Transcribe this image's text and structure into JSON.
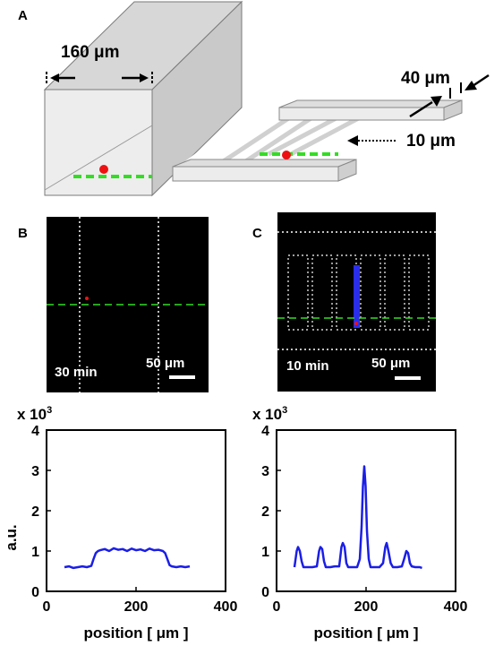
{
  "panels": [
    {
      "id": "A",
      "label": "A"
    },
    {
      "id": "B",
      "label": "B"
    },
    {
      "id": "C",
      "label": "C"
    }
  ],
  "schematic": {
    "width_label": "160 μm",
    "channel_label": "40 μm",
    "gap_label": "10 μm"
  },
  "micrographs": [
    {
      "panel": "B",
      "time_label": "30 min",
      "scale_label": "50 μm"
    },
    {
      "panel": "C",
      "time_label": "10 min",
      "scale_label": "50 μm"
    }
  ],
  "plots": {
    "ylabel": "a.u.",
    "xlabel": "position [ μm ]",
    "y_multiplier": "x 10",
    "y_exponent": "3"
  },
  "colors": {
    "trace": "#1a1ee6",
    "guide": "#33dd22",
    "particle": "#ee1111",
    "box_face": "#e8e8e8",
    "box_top": "#d6d6d6"
  },
  "chart_data": [
    {
      "type": "line",
      "panel": "B",
      "xlabel": "position [ μm ]",
      "ylabel": "a.u.",
      "y_scale_note": "x 10^3",
      "xlim": [
        0,
        400
      ],
      "ylim": [
        0,
        4
      ],
      "xticks": [
        0,
        200,
        400
      ],
      "yticks": [
        0,
        1,
        2,
        3,
        4
      ],
      "series": [
        {
          "x": [
            40,
            50,
            60,
            70,
            80,
            90,
            100,
            105,
            110,
            115,
            120,
            130,
            140,
            150,
            160,
            170,
            180,
            190,
            200,
            210,
            220,
            230,
            240,
            250,
            260,
            265,
            270,
            275,
            280,
            290,
            300,
            310,
            320
          ],
          "y": [
            0.6,
            0.62,
            0.58,
            0.6,
            0.62,
            0.6,
            0.63,
            0.8,
            0.95,
            1.0,
            1.02,
            1.05,
            1.0,
            1.07,
            1.03,
            1.05,
            1.0,
            1.06,
            1.02,
            1.04,
            1.0,
            1.06,
            1.02,
            1.03,
            1.0,
            0.95,
            0.8,
            0.65,
            0.62,
            0.6,
            0.62,
            0.6,
            0.62
          ]
        }
      ]
    },
    {
      "type": "line",
      "panel": "C",
      "xlabel": "position [ μm ]",
      "y_scale_note": "x 10^3",
      "xlim": [
        0,
        400
      ],
      "ylim": [
        0,
        4
      ],
      "xticks": [
        0,
        200,
        400
      ],
      "yticks": [
        0,
        1,
        2,
        3,
        4
      ],
      "series": [
        {
          "x": [
            40,
            45,
            48,
            52,
            56,
            60,
            70,
            80,
            90,
            95,
            98,
            102,
            106,
            110,
            120,
            130,
            140,
            145,
            148,
            152,
            156,
            160,
            170,
            180,
            186,
            190,
            193,
            196,
            199,
            202,
            206,
            210,
            220,
            230,
            238,
            243,
            246,
            250,
            255,
            260,
            270,
            280,
            285,
            290,
            294,
            298,
            302,
            310,
            320,
            325
          ],
          "y": [
            0.6,
            1.0,
            1.1,
            1.0,
            0.75,
            0.6,
            0.6,
            0.6,
            0.62,
            1.0,
            1.1,
            1.05,
            0.75,
            0.6,
            0.6,
            0.62,
            0.62,
            1.1,
            1.2,
            1.1,
            0.7,
            0.6,
            0.6,
            0.6,
            0.8,
            1.6,
            2.6,
            3.1,
            2.6,
            1.5,
            0.8,
            0.6,
            0.6,
            0.6,
            0.7,
            1.1,
            1.2,
            1.0,
            0.7,
            0.6,
            0.6,
            0.62,
            0.8,
            1.0,
            0.95,
            0.7,
            0.62,
            0.6,
            0.6,
            0.58
          ]
        }
      ]
    }
  ]
}
